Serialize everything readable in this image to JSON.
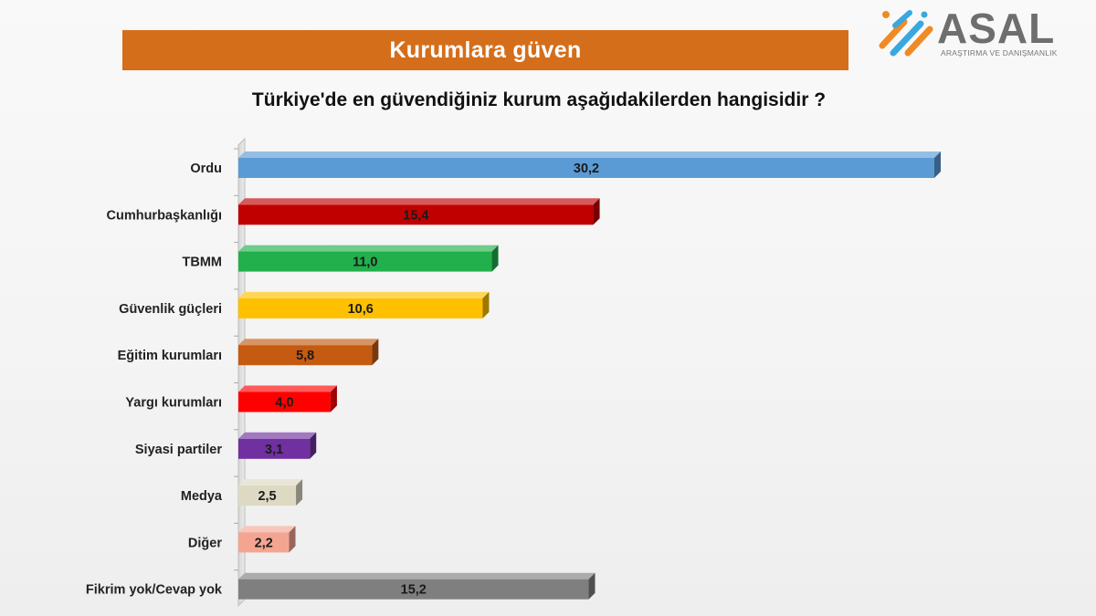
{
  "banner": {
    "title": "Kurumlara güven"
  },
  "logo": {
    "name": "ASAL",
    "subtitle": "ARAŞTIRMA VE DANIŞMANLIK"
  },
  "question": "Türkiye'de en güvendiğiniz kurum aşağıdakilerden hangisidir ?",
  "chart_data": {
    "type": "bar",
    "orientation": "horizontal",
    "style": "3d",
    "title": "Türkiye'de en güvendiğiniz kurum aşağıdakilerden hangisidir ?",
    "xlabel": "",
    "ylabel": "",
    "grid": false,
    "legend": "none",
    "xlim": [
      0,
      30.2
    ],
    "categories": [
      "Ordu",
      "Cumhurbaşkanlığı",
      "TBMM",
      "Güvenlik güçleri",
      "Eğitim kurumları",
      "Yargı kurumları",
      "Siyasi partiler",
      "Medya",
      "Diğer",
      "Fikrim yok/Cevap yok"
    ],
    "values": [
      30.2,
      15.4,
      11.0,
      10.6,
      5.8,
      4.0,
      3.1,
      2.5,
      2.2,
      15.2
    ],
    "value_labels": [
      "30,2",
      "15,4",
      "11,0",
      "10,6",
      "5,8",
      "4,0",
      "3,1",
      "2,5",
      "2,2",
      "15,2"
    ],
    "colors": [
      "#5b9bd5",
      "#c00000",
      "#21b04b",
      "#ffc000",
      "#c55a11",
      "#ff0000",
      "#7030a0",
      "#ddd9c3",
      "#f4a592",
      "#7f7f7f"
    ]
  }
}
